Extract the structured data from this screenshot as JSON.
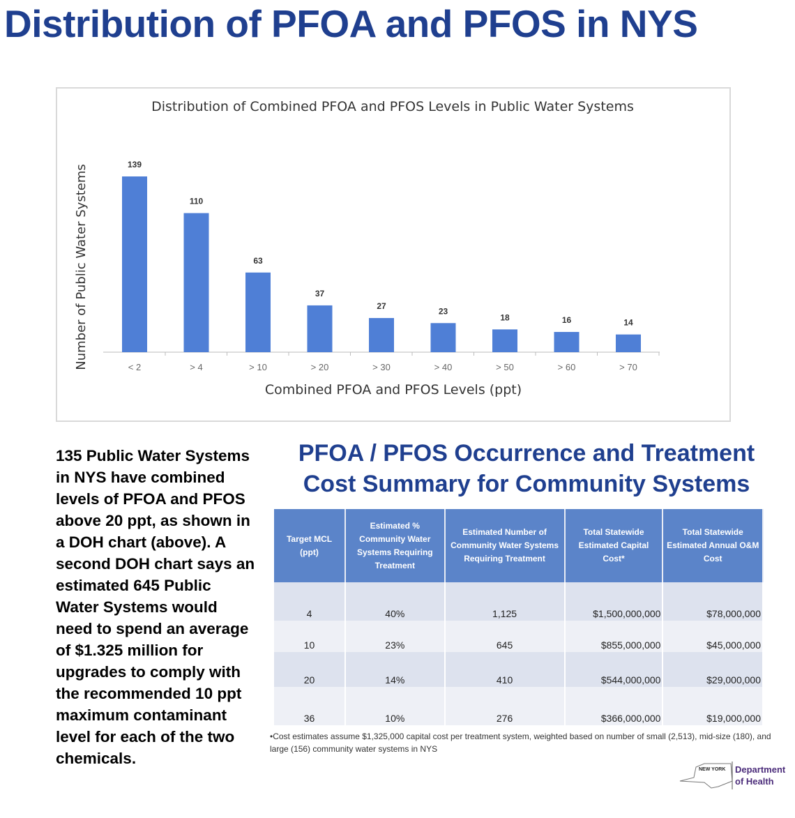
{
  "title": "Distribution of PFOA and PFOS in NYS",
  "chart_data": {
    "type": "bar",
    "title": "Distribution of Combined PFOA and PFOS Levels in Public Water Systems",
    "xlabel": "Combined PFOA and PFOS Levels (ppt)",
    "ylabel": "Number of Public Water Systems",
    "categories": [
      "< 2",
      "> 4",
      "> 10",
      "> 20",
      "> 30",
      "> 40",
      "> 50",
      "> 60",
      "> 70"
    ],
    "values": [
      139,
      110,
      63,
      37,
      27,
      23,
      18,
      16,
      14
    ],
    "ylim": [
      0,
      139
    ],
    "grid": false,
    "color": "#4f7fd6"
  },
  "paragraph": "135 Public Water Systems in NYS have combined levels of PFOA and PFOS above 20 ppt, as shown in a DOH chart (above). A second DOH chart says an estimated 645 Public Water Systems would need to spend an average of $1.325 million for upgrades to comply with the recommended 10 ppt maximum contaminant level for each of the two chemicals.",
  "table": {
    "title": "PFOA / PFOS Occurrence and Treatment Cost Summary for Community Systems",
    "headers": [
      "Target MCL (ppt)",
      "Estimated % Community Water Systems Requiring Treatment",
      "Estimated Number of Community Water Systems Requiring Treatment",
      "Total Statewide Estimated Capital Cost*",
      "Total Statewide Estimated Annual O&M Cost"
    ],
    "rows": [
      [
        "4",
        "40%",
        "1,125",
        "$1,500,000,000",
        "$78,000,000"
      ],
      [
        "10",
        "23%",
        "645",
        "$855,000,000",
        "$45,000,000"
      ],
      [
        "20",
        "14%",
        "410",
        "$544,000,000",
        "$29,000,000"
      ],
      [
        "36",
        "10%",
        "276",
        "$366,000,000",
        "$19,000,000"
      ]
    ],
    "footnote": "•Cost estimates assume $1,325,000 capital cost per treatment system, weighted based on number of small (2,513), mid-size (180), and large (156) community water systems in NYS"
  },
  "logo": {
    "state": "NEW YORK STATE OF OPPORTUNITY",
    "dept": "Department of Health"
  }
}
